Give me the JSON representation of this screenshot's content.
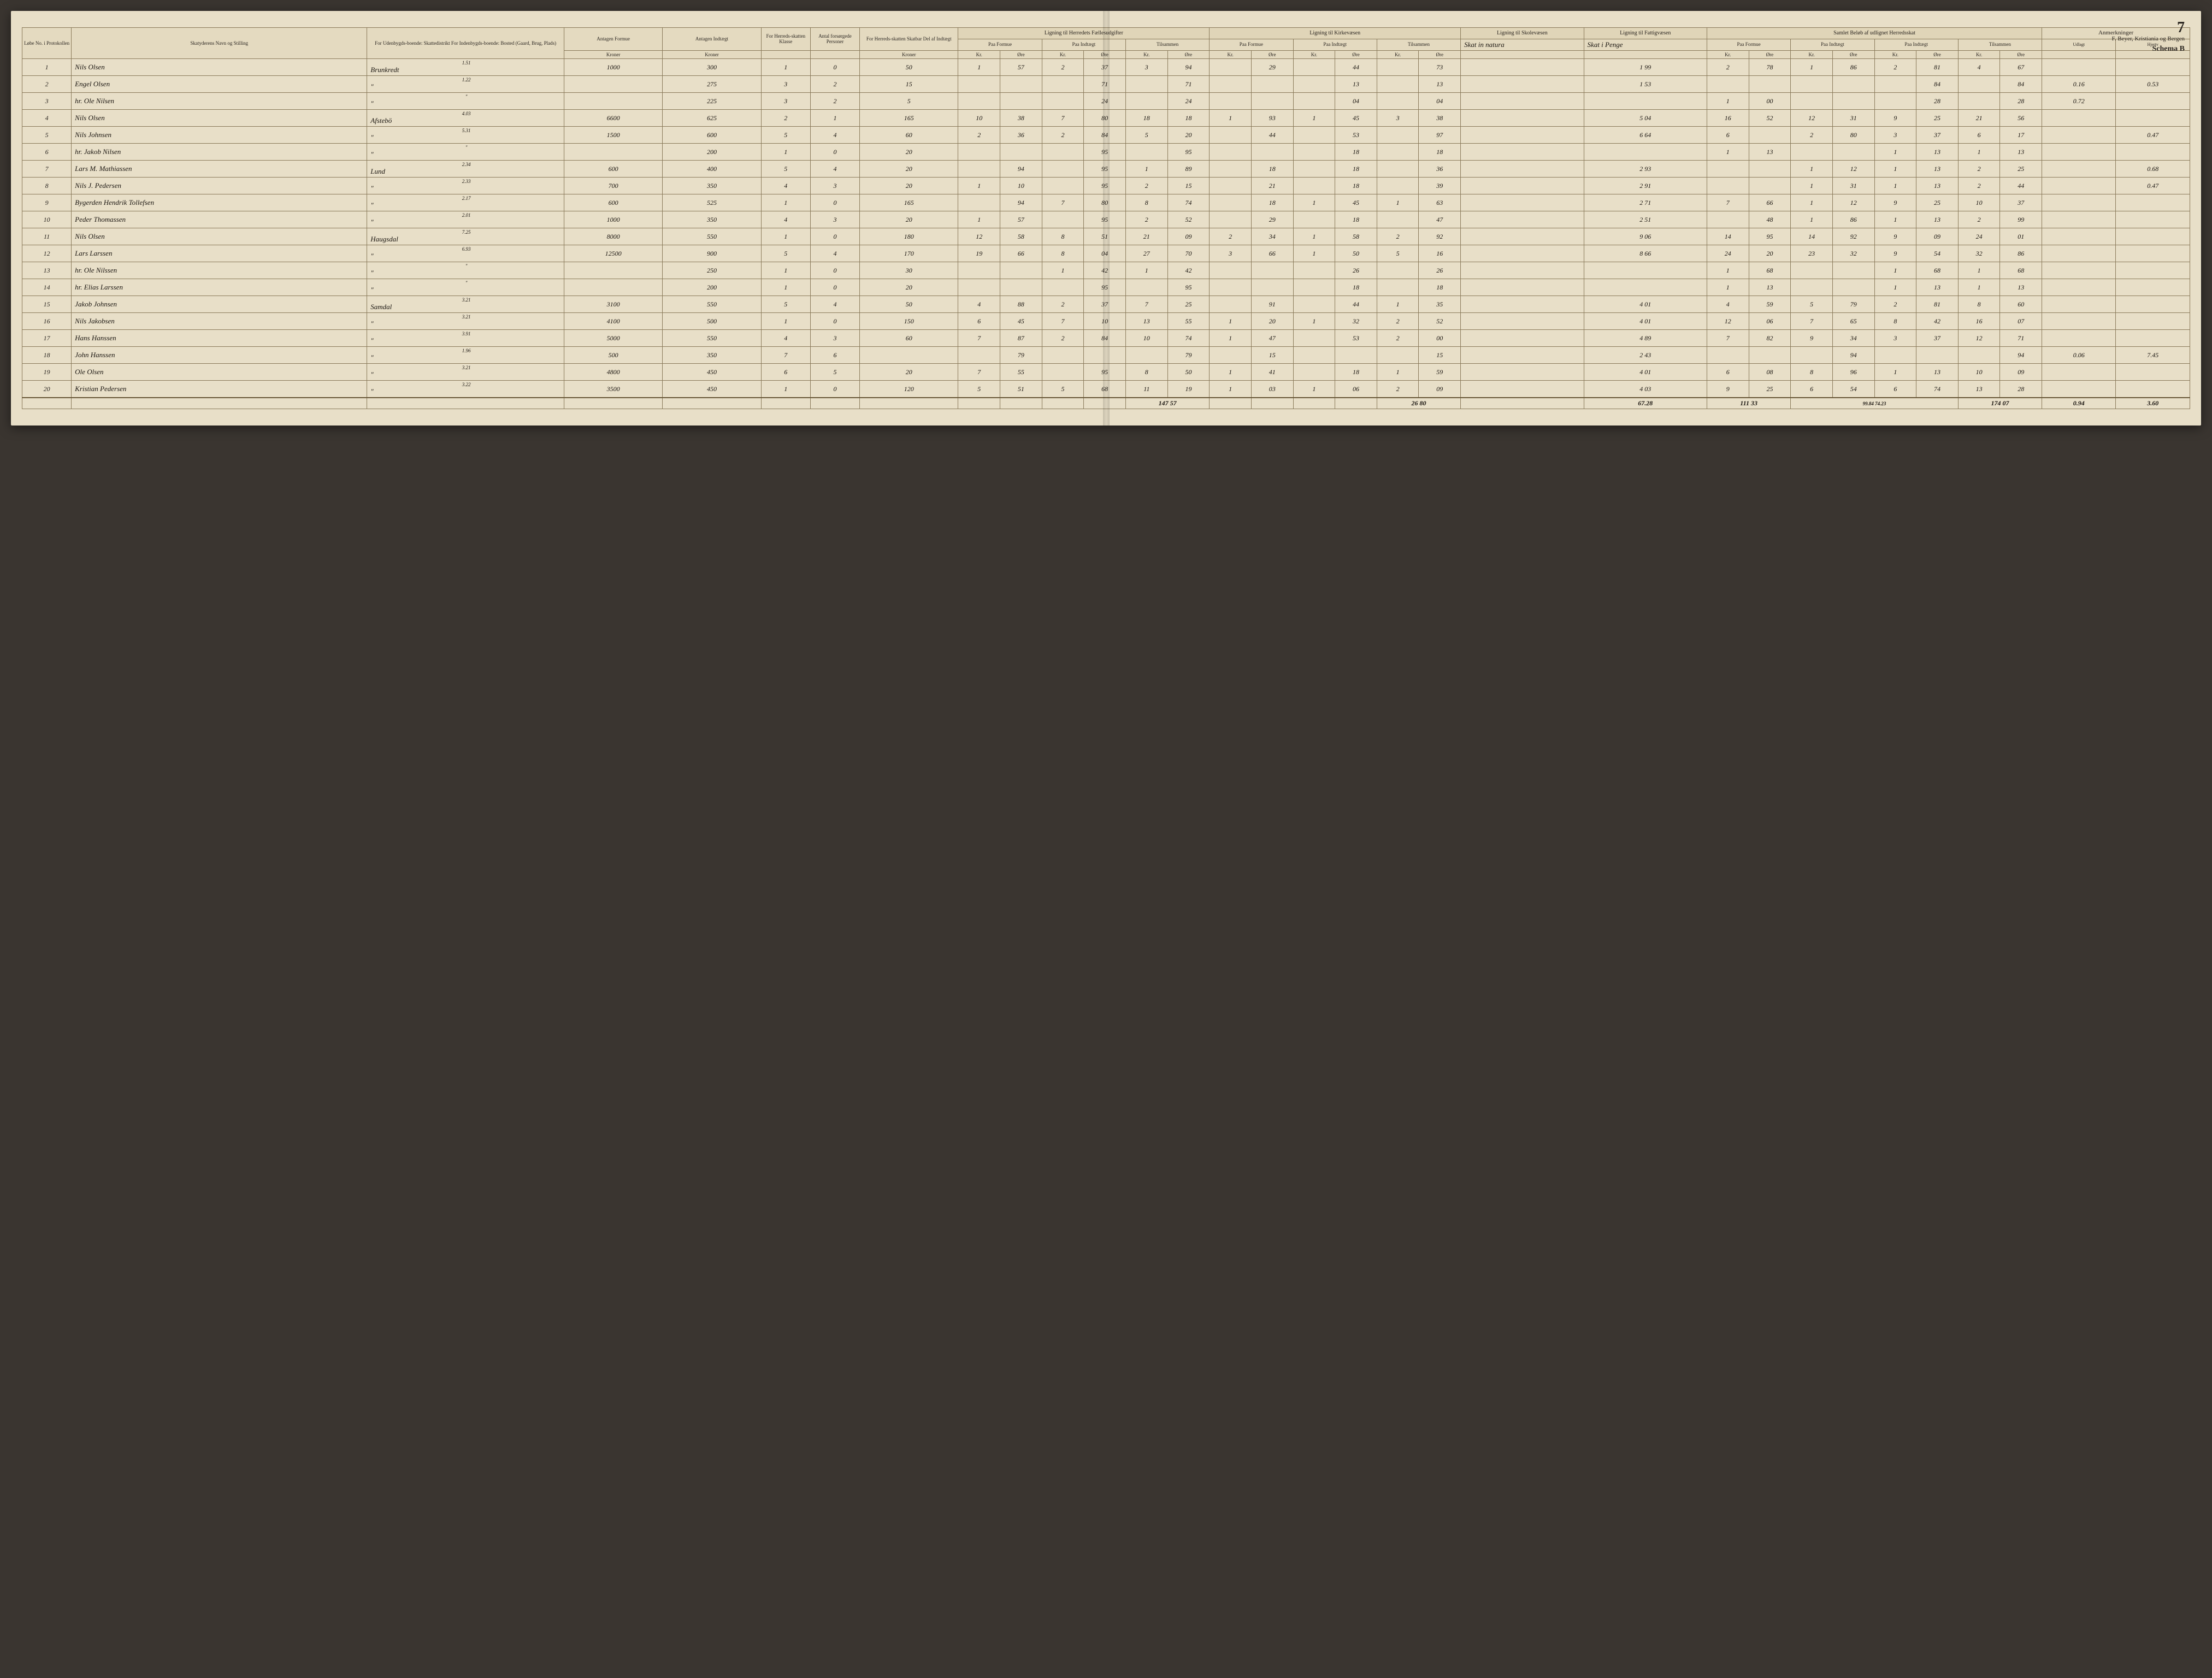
{
  "page_number": "7",
  "publisher": "F. Beyer, Kristiania og Bergen",
  "schema": "Schema B",
  "anmerkninger": "Anmerkninger",
  "anm_sub": [
    "Udlagt",
    "Hjertv"
  ],
  "header": {
    "col_lobe": "Løbe No. i Protokollen",
    "col_name": "Skatyderens Navn og Stilling",
    "col_place": "For Udenbygds-boende: Skattedistrikt\nFor Indenbygds-boende: Bosted (Gaard, Brug, Plads)",
    "col_formue": "Antagen Formue",
    "col_indtaegt": "Antagen Indtægt",
    "col_klasse": "For Herreds-skatten\nKlasse",
    "col_stats": "For Stats-skatten",
    "col_persons": "Antal forsørgede Personer",
    "col_skatbar": "For Herreds-skatten\nSkatbar Del af Indtægt",
    "group_felles": "Ligning til Herredets Fællesudgifter",
    "group_kirke": "Ligning til Kirkevæsen",
    "group_skole": "Ligning til Skolevæsen",
    "group_fattig": "Ligning til Fattigvæsen",
    "group_samlet": "Samlet Beløb af udlignet Herredsskat",
    "hand_skole": "Skat in natura",
    "hand_fattig": "Skat i Penge",
    "sub_formue": "Paa Formue",
    "sub_indtaegt": "Paa Indtægt",
    "sub_sammen": "Tilsammen",
    "unit_kroner": "Kroner",
    "unit_kr": "Kr.",
    "unit_ore": "Øre"
  },
  "rows": [
    {
      "n": "1",
      "name": "Nils Olsen",
      "place_no": "1.51",
      "place": "Brunkredt",
      "formue": "1000",
      "indt": "300",
      "kl": "1",
      "st": "0",
      "sk": "50",
      "f": [
        "1",
        "57",
        "2",
        "37",
        "3",
        "94"
      ],
      "k": [
        "",
        "29",
        "",
        "44",
        "",
        "73"
      ],
      "sv": "1 99",
      "fv": [
        "2",
        "78",
        "1",
        "86",
        "2",
        "81",
        "4",
        "67"
      ],
      "anm": [
        "",
        ""
      ]
    },
    {
      "n": "2",
      "name": "Engel Olsen",
      "place_no": "1.22",
      "place": "\"",
      "formue": "",
      "indt": "275",
      "kl": "3",
      "st": "2",
      "sk": "15",
      "f": [
        "",
        "",
        "",
        "71",
        "",
        "71"
      ],
      "k": [
        "",
        "",
        "",
        "13",
        "",
        "13"
      ],
      "sv": "1 53",
      "fv": [
        "",
        "",
        "",
        "",
        "",
        "84",
        "",
        "84"
      ],
      "anm": [
        "0.16",
        "0.53"
      ]
    },
    {
      "n": "3",
      "name": "hr. Ole Nilsen",
      "place_no": "\"",
      "place": "\"",
      "formue": "",
      "indt": "225",
      "kl": "3",
      "st": "2",
      "sk": "5",
      "f": [
        "",
        "",
        "",
        "24",
        "",
        "24"
      ],
      "k": [
        "",
        "",
        "",
        "04",
        "",
        "04"
      ],
      "sv": "",
      "fv": [
        "1",
        "00",
        "",
        "",
        "",
        "28",
        "",
        "28"
      ],
      "anm": [
        "0.72",
        ""
      ]
    },
    {
      "n": "4",
      "name": "Nils Olsen",
      "place_no": "4.03",
      "place": "Afstebö",
      "formue": "6600",
      "indt": "625",
      "kl": "2",
      "st": "1",
      "sk": "165",
      "f": [
        "10",
        "38",
        "7",
        "80",
        "18",
        "18"
      ],
      "k": [
        "1",
        "93",
        "1",
        "45",
        "3",
        "38"
      ],
      "sv": "5 04",
      "fv": [
        "16",
        "52",
        "12",
        "31",
        "9",
        "25",
        "21",
        "56"
      ],
      "anm": [
        "",
        ""
      ]
    },
    {
      "n": "5",
      "name": "Nils Johnsen",
      "place_no": "5.31",
      "place": "\"",
      "formue": "1500",
      "indt": "600",
      "kl": "5",
      "st": "4",
      "sk": "60",
      "f": [
        "2",
        "36",
        "2",
        "84",
        "5",
        "20"
      ],
      "k": [
        "",
        "44",
        "",
        "53",
        "",
        "97"
      ],
      "sv": "6 64",
      "fv": [
        "6",
        "",
        "2",
        "80",
        "3",
        "37",
        "6",
        "17"
      ],
      "anm": [
        "",
        "0.47"
      ]
    },
    {
      "n": "6",
      "name": "hr. Jakob Nilsen",
      "place_no": "\"",
      "place": "\"",
      "formue": "",
      "indt": "200",
      "kl": "1",
      "st": "0",
      "sk": "20",
      "f": [
        "",
        "",
        "",
        "95",
        "",
        "95"
      ],
      "k": [
        "",
        "",
        "",
        "18",
        "",
        "18"
      ],
      "sv": "",
      "fv": [
        "1",
        "13",
        "",
        "",
        "1",
        "13",
        "1",
        "13"
      ],
      "anm": [
        "",
        ""
      ]
    },
    {
      "n": "7",
      "name": "Lars M. Mathiassen",
      "place_no": "2.34",
      "place": "Lund",
      "formue": "600",
      "indt": "400",
      "kl": "5",
      "st": "4",
      "sk": "20",
      "f": [
        "",
        "94",
        "",
        "95",
        "1",
        "89"
      ],
      "k": [
        "",
        "18",
        "",
        "18",
        "",
        "36"
      ],
      "sv": "2 93",
      "fv": [
        "",
        "",
        "1",
        "12",
        "1",
        "13",
        "2",
        "25"
      ],
      "anm": [
        "",
        "0.68"
      ]
    },
    {
      "n": "8",
      "name": "Nils J. Pedersen",
      "place_no": "2.33",
      "place": "\"",
      "formue": "700",
      "indt": "350",
      "kl": "4",
      "st": "3",
      "sk": "20",
      "f": [
        "1",
        "10",
        "",
        "95",
        "2",
        "15"
      ],
      "k": [
        "",
        "21",
        "",
        "18",
        "",
        "39"
      ],
      "sv": "2 91",
      "fv": [
        "",
        "",
        "1",
        "31",
        "1",
        "13",
        "2",
        "44"
      ],
      "anm": [
        "",
        "0.47"
      ]
    },
    {
      "n": "9",
      "name": "Bygerden Hendrik Tollefsen",
      "place_no": "2.17",
      "place": "\"",
      "formue": "600",
      "indt": "525",
      "kl": "1",
      "st": "0",
      "sk": "165",
      "f": [
        "",
        "94",
        "7",
        "80",
        "8",
        "74"
      ],
      "k": [
        "",
        "18",
        "1",
        "45",
        "1",
        "63"
      ],
      "sv": "2 71",
      "fv": [
        "7",
        "66",
        "1",
        "12",
        "9",
        "25",
        "10",
        "37"
      ],
      "anm": [
        "",
        ""
      ]
    },
    {
      "n": "10",
      "name": "Peder Thomassen",
      "place_no": "2.01",
      "place": "\"",
      "formue": "1000",
      "indt": "350",
      "kl": "4",
      "st": "3",
      "sk": "20",
      "f": [
        "1",
        "57",
        "",
        "95",
        "2",
        "52"
      ],
      "k": [
        "",
        "29",
        "",
        "18",
        "",
        "47"
      ],
      "sv": "2 51",
      "fv": [
        "",
        "48",
        "1",
        "86",
        "1",
        "13",
        "2",
        "99"
      ],
      "anm": [
        "",
        ""
      ]
    },
    {
      "n": "11",
      "name": "Nils Olsen",
      "place_no": "7.25",
      "place": "Haugsdal",
      "formue": "8000",
      "indt": "550",
      "kl": "1",
      "st": "0",
      "sk": "180",
      "f": [
        "12",
        "58",
        "8",
        "51",
        "21",
        "09"
      ],
      "k": [
        "2",
        "34",
        "1",
        "58",
        "2",
        "92"
      ],
      "sv": "9 06",
      "fv": [
        "14",
        "95",
        "14",
        "92",
        "9",
        "09",
        "24",
        "01"
      ],
      "anm": [
        "",
        ""
      ]
    },
    {
      "n": "12",
      "name": "Lars Larssen",
      "place_no": "6.93",
      "place": "\"",
      "formue": "12500",
      "indt": "900",
      "kl": "5",
      "st": "4",
      "sk": "170",
      "f": [
        "19",
        "66",
        "8",
        "04",
        "27",
        "70"
      ],
      "k": [
        "3",
        "66",
        "1",
        "50",
        "5",
        "16"
      ],
      "sv": "8 66",
      "fv": [
        "24",
        "20",
        "23",
        "32",
        "9",
        "54",
        "32",
        "86"
      ],
      "anm": [
        "",
        ""
      ]
    },
    {
      "n": "13",
      "name": "hr. Ole Nilssen",
      "place_no": "\"",
      "place": "\"",
      "formue": "",
      "indt": "250",
      "kl": "1",
      "st": "0",
      "sk": "30",
      "f": [
        "",
        "",
        "1",
        "42",
        "1",
        "42"
      ],
      "k": [
        "",
        "",
        "",
        "26",
        "",
        "26"
      ],
      "sv": "",
      "fv": [
        "1",
        "68",
        "",
        "",
        "1",
        "68",
        "1",
        "68"
      ],
      "anm": [
        "",
        ""
      ]
    },
    {
      "n": "14",
      "name": "hr. Elias Larssen",
      "place_no": "\"",
      "place": "\"",
      "formue": "",
      "indt": "200",
      "kl": "1",
      "st": "0",
      "sk": "20",
      "f": [
        "",
        "",
        "",
        "95",
        "",
        "95"
      ],
      "k": [
        "",
        "",
        "",
        "18",
        "",
        "18"
      ],
      "sv": "",
      "fv": [
        "1",
        "13",
        "",
        "",
        "1",
        "13",
        "1",
        "13"
      ],
      "anm": [
        "",
        ""
      ]
    },
    {
      "n": "15",
      "name": "Jakob Johnsen",
      "place_no": "3.21",
      "place": "Samdal",
      "formue": "3100",
      "indt": "550",
      "kl": "5",
      "st": "4",
      "sk": "50",
      "f": [
        "4",
        "88",
        "2",
        "37",
        "7",
        "25"
      ],
      "k": [
        "",
        "91",
        "",
        "44",
        "1",
        "35"
      ],
      "sv": "4 01",
      "fv": [
        "4",
        "59",
        "5",
        "79",
        "2",
        "81",
        "8",
        "60"
      ],
      "anm": [
        "",
        ""
      ]
    },
    {
      "n": "16",
      "name": "Nils Jakobsen",
      "place_no": "3.21",
      "place": "\"",
      "formue": "4100",
      "indt": "500",
      "kl": "1",
      "st": "0",
      "sk": "150",
      "f": [
        "6",
        "45",
        "7",
        "10",
        "13",
        "55"
      ],
      "k": [
        "1",
        "20",
        "1",
        "32",
        "2",
        "52"
      ],
      "sv": "4 01",
      "fv": [
        "12",
        "06",
        "7",
        "65",
        "8",
        "42",
        "16",
        "07"
      ],
      "anm": [
        "",
        ""
      ]
    },
    {
      "n": "17",
      "name": "Hans Hanssen",
      "place_no": "3.91",
      "place": "\"",
      "formue": "5000",
      "indt": "550",
      "kl": "4",
      "st": "3",
      "sk": "60",
      "f": [
        "7",
        "87",
        "2",
        "84",
        "10",
        "74"
      ],
      "k": [
        "1",
        "47",
        "",
        "53",
        "2",
        "00"
      ],
      "sv": "4 89",
      "fv": [
        "7",
        "82",
        "9",
        "34",
        "3",
        "37",
        "12",
        "71"
      ],
      "anm": [
        "",
        ""
      ]
    },
    {
      "n": "18",
      "name": "John Hanssen",
      "place_no": "1.96",
      "place": "\"",
      "formue": "500",
      "indt": "350",
      "kl": "7",
      "st": "6",
      "sk": "",
      "f": [
        "",
        "79",
        "",
        "",
        "",
        "79"
      ],
      "k": [
        "",
        "15",
        "",
        "",
        "",
        "15"
      ],
      "sv": "2 43",
      "fv": [
        "",
        "",
        "",
        "94",
        "",
        "",
        "",
        "94"
      ],
      "anm": [
        "0.06",
        "7.45"
      ]
    },
    {
      "n": "19",
      "name": "Ole Olsen",
      "place_no": "3.21",
      "place": "\"",
      "formue": "4800",
      "indt": "450",
      "kl": "6",
      "st": "5",
      "sk": "20",
      "f": [
        "7",
        "55",
        "",
        "95",
        "8",
        "50"
      ],
      "k": [
        "1",
        "41",
        "",
        "18",
        "1",
        "59"
      ],
      "sv": "4 01",
      "fv": [
        "6",
        "08",
        "8",
        "96",
        "1",
        "13",
        "10",
        "09"
      ],
      "anm": [
        "",
        ""
      ]
    },
    {
      "n": "20",
      "name": "Kristian Pedersen",
      "place_no": "3.22",
      "place": "\"",
      "formue": "3500",
      "indt": "450",
      "kl": "1",
      "st": "0",
      "sk": "120",
      "f": [
        "5",
        "51",
        "5",
        "68",
        "11",
        "19"
      ],
      "k": [
        "1",
        "03",
        "1",
        "06",
        "2",
        "09"
      ],
      "sv": "4 03",
      "fv": [
        "9",
        "25",
        "6",
        "54",
        "6",
        "74",
        "13",
        "28"
      ],
      "anm": [
        "",
        ""
      ]
    }
  ],
  "totals": {
    "f_sum": "147 57",
    "k_sum": "26 80",
    "sv_sum": "67.28",
    "fv_sum": "111 33",
    "extra": "99.84  74.23",
    "grand": "174 07",
    "anm": [
      "0.94",
      "3.60"
    ]
  }
}
